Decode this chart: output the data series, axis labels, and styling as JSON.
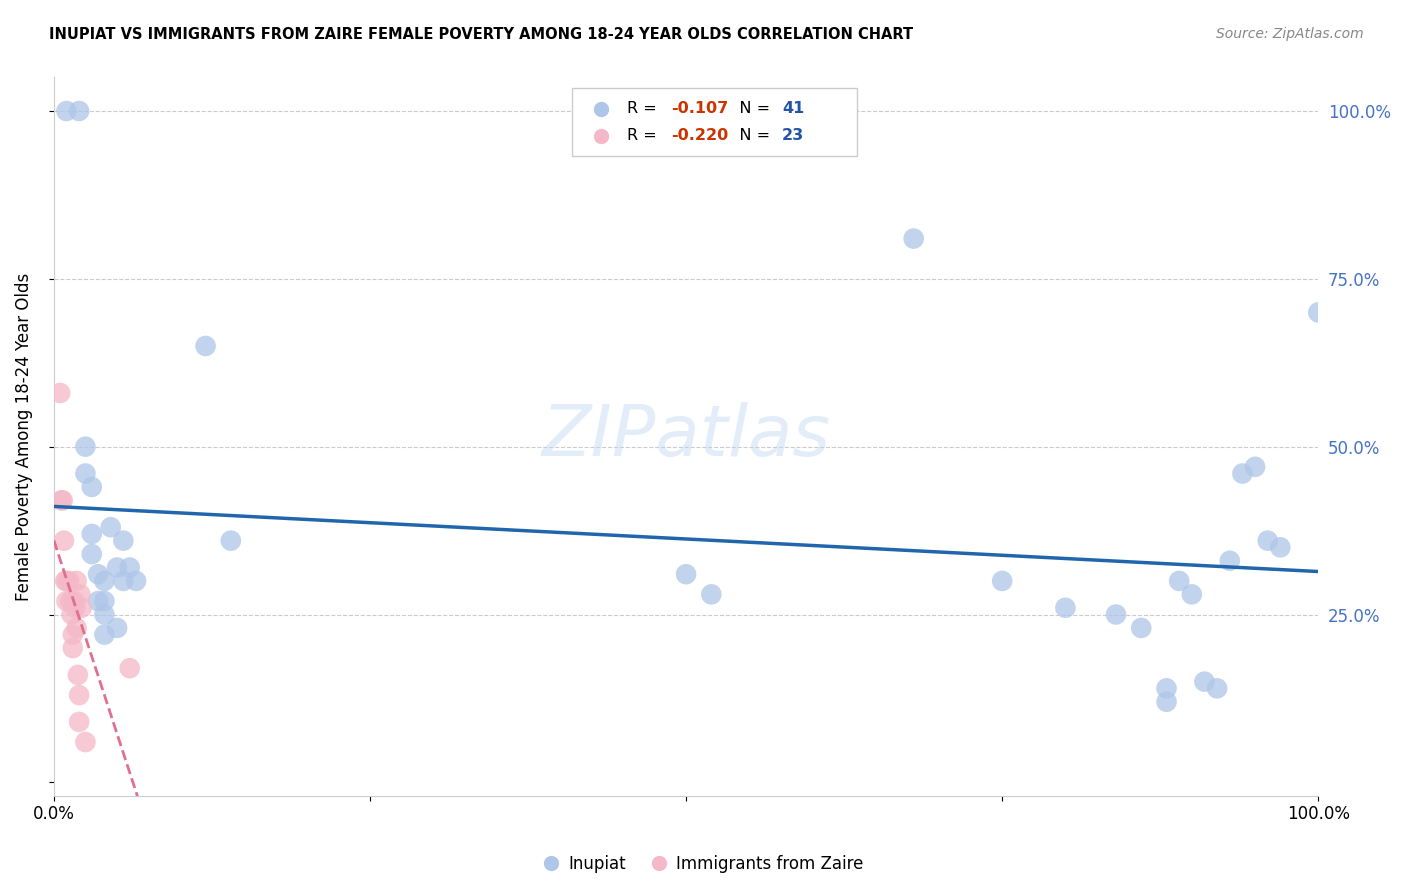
{
  "title": "INUPIAT VS IMMIGRANTS FROM ZAIRE FEMALE POVERTY AMONG 18-24 YEAR OLDS CORRELATION CHART",
  "source": "Source: ZipAtlas.com",
  "ylabel": "Female Poverty Among 18-24 Year Olds",
  "xlim": [
    0,
    1
  ],
  "ylim": [
    -0.02,
    1.05
  ],
  "inupiat_color": "#aec6e8",
  "zaire_color": "#f4b8c8",
  "inupiat_line_color": "#2166ac",
  "zaire_line_color": "#e07090",
  "inupiat_r": "-0.107",
  "inupiat_n": "41",
  "zaire_r": "-0.220",
  "zaire_n": "23",
  "r_color": "#cc3300",
  "n_color": "#2255aa",
  "inupiat_x": [
    0.01,
    0.02,
    0.025,
    0.025,
    0.03,
    0.03,
    0.03,
    0.035,
    0.035,
    0.04,
    0.04,
    0.04,
    0.04,
    0.045,
    0.05,
    0.05,
    0.055,
    0.055,
    0.06,
    0.065,
    0.12,
    0.14,
    0.5,
    0.52,
    0.68,
    0.75,
    0.8,
    0.84,
    0.86,
    0.88,
    0.88,
    0.89,
    0.9,
    0.91,
    0.92,
    0.93,
    0.94,
    0.95,
    0.96,
    0.97,
    1.0
  ],
  "inupiat_y": [
    1.0,
    1.0,
    0.5,
    0.46,
    0.44,
    0.37,
    0.34,
    0.31,
    0.27,
    0.3,
    0.27,
    0.25,
    0.22,
    0.38,
    0.32,
    0.23,
    0.36,
    0.3,
    0.32,
    0.3,
    0.65,
    0.36,
    0.31,
    0.28,
    0.81,
    0.3,
    0.26,
    0.25,
    0.23,
    0.14,
    0.12,
    0.3,
    0.28,
    0.15,
    0.14,
    0.33,
    0.46,
    0.47,
    0.36,
    0.35,
    0.7
  ],
  "zaire_x": [
    0.005,
    0.006,
    0.007,
    0.008,
    0.009,
    0.01,
    0.01,
    0.012,
    0.013,
    0.014,
    0.015,
    0.015,
    0.016,
    0.017,
    0.018,
    0.018,
    0.019,
    0.02,
    0.02,
    0.021,
    0.022,
    0.025,
    0.06
  ],
  "zaire_y": [
    0.58,
    0.42,
    0.42,
    0.36,
    0.3,
    0.3,
    0.27,
    0.3,
    0.27,
    0.25,
    0.22,
    0.2,
    0.27,
    0.26,
    0.23,
    0.3,
    0.16,
    0.13,
    0.09,
    0.28,
    0.26,
    0.06,
    0.17
  ]
}
